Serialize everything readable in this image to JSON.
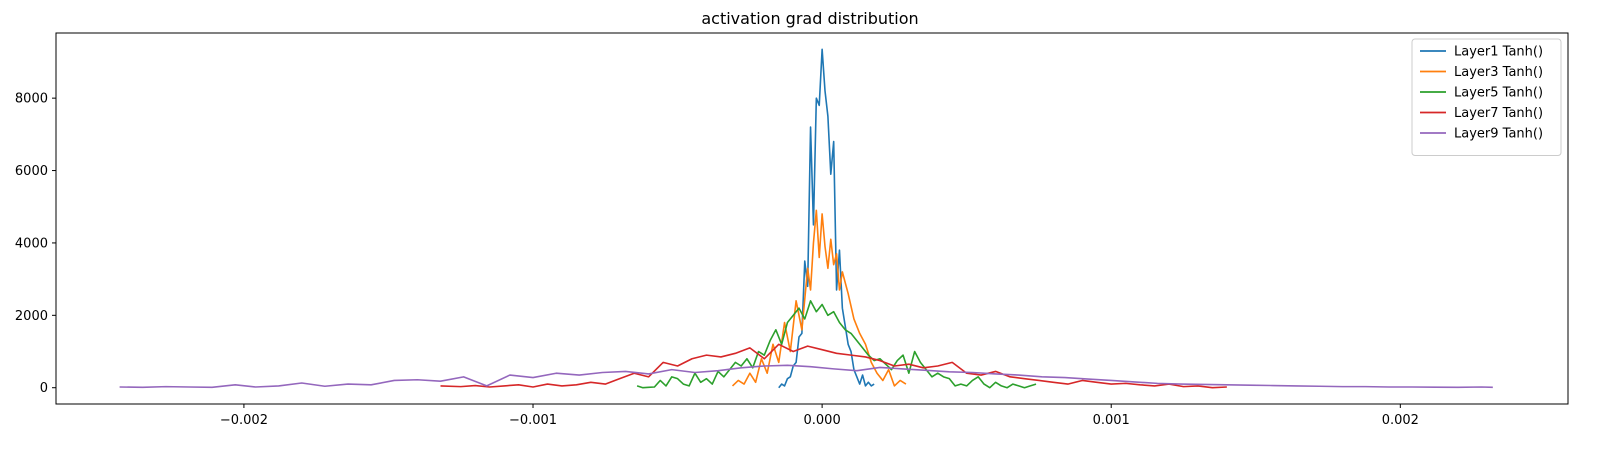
{
  "chart_data": {
    "type": "line",
    "title": "activation grad distribution",
    "xlabel": "",
    "ylabel": "",
    "xlim": [
      -0.00265,
      0.00258
    ],
    "ylim": [
      -450,
      9800
    ],
    "xticks": [
      -0.002,
      -0.001,
      0.0,
      0.001,
      0.002
    ],
    "xtick_labels": [
      "−0.002",
      "−0.001",
      "0.000",
      "0.001",
      "0.002"
    ],
    "yticks": [
      0,
      2000,
      4000,
      6000,
      8000
    ],
    "ytick_labels": [
      "0",
      "2000",
      "4000",
      "6000",
      "8000"
    ],
    "grid": false,
    "legend_position": "top-right",
    "series": [
      {
        "name": "Layer1 Tanh()",
        "color": "#1f77b4",
        "x": [
          -0.00015,
          -0.00014,
          -0.00013,
          -0.00012,
          -0.00011,
          -0.0001,
          -9e-05,
          -8e-05,
          -7e-05,
          -6e-05,
          -5e-05,
          -4e-05,
          -3e-05,
          -2e-05,
          -1e-05,
          0.0,
          1e-05,
          2e-05,
          3e-05,
          4e-05,
          5e-05,
          6e-05,
          7e-05,
          8e-05,
          9e-05,
          0.0001,
          0.00011,
          0.00012,
          0.00013,
          0.00014,
          0.00015,
          0.00016,
          0.00017,
          0.00018
        ],
        "y": [
          0,
          100,
          50,
          250,
          300,
          600,
          700,
          1400,
          1500,
          3500,
          2800,
          7200,
          4500,
          8000,
          7800,
          9350,
          8200,
          7500,
          5900,
          6800,
          2700,
          3800,
          2200,
          1700,
          1200,
          1000,
          500,
          300,
          100,
          350,
          50,
          150,
          50,
          100
        ]
      },
      {
        "name": "Layer3 Tanh()",
        "color": "#ff7f0e",
        "x": [
          -0.00031,
          -0.00029,
          -0.00027,
          -0.00025,
          -0.00023,
          -0.00021,
          -0.00019,
          -0.00017,
          -0.00015,
          -0.00013,
          -0.00011,
          -9e-05,
          -7e-05,
          -5e-05,
          -4e-05,
          -3e-05,
          -2e-05,
          -1e-05,
          0.0,
          1e-05,
          2e-05,
          3e-05,
          4e-05,
          5e-05,
          6e-05,
          7e-05,
          9e-05,
          0.00011,
          0.00013,
          0.00015,
          0.00017,
          0.00019,
          0.00021,
          0.00023,
          0.00025,
          0.00027,
          0.00029
        ],
        "y": [
          50,
          200,
          100,
          400,
          150,
          800,
          400,
          1200,
          700,
          1800,
          1000,
          2400,
          1600,
          3300,
          2700,
          4000,
          4900,
          3600,
          4800,
          3900,
          3300,
          4100,
          3400,
          3700,
          2700,
          3200,
          2600,
          1900,
          1500,
          1200,
          700,
          400,
          200,
          500,
          50,
          200,
          100
        ]
      },
      {
        "name": "Layer5 Tanh()",
        "color": "#2ca02c",
        "x": [
          -0.00064,
          -0.00062,
          -0.0006,
          -0.00058,
          -0.00056,
          -0.00054,
          -0.00052,
          -0.0005,
          -0.00048,
          -0.00046,
          -0.00044,
          -0.00042,
          -0.0004,
          -0.00038,
          -0.00036,
          -0.00034,
          -0.00032,
          -0.0003,
          -0.00028,
          -0.00026,
          -0.00024,
          -0.00022,
          -0.0002,
          -0.00018,
          -0.00016,
          -0.00014,
          -0.00012,
          -0.0001,
          -8e-05,
          -6e-05,
          -4e-05,
          -2e-05,
          0.0,
          2e-05,
          4e-05,
          6e-05,
          8e-05,
          0.0001,
          0.00012,
          0.00014,
          0.00016,
          0.00018,
          0.0002,
          0.00022,
          0.00024,
          0.00026,
          0.00028,
          0.0003,
          0.00032,
          0.00034,
          0.00036,
          0.00038,
          0.0004,
          0.00042,
          0.00044,
          0.00046,
          0.00048,
          0.0005,
          0.00052,
          0.00054,
          0.00056,
          0.00058,
          0.0006,
          0.00062,
          0.00064,
          0.00066,
          0.00068,
          0.0007,
          0.00072,
          0.00074
        ],
        "y": [
          50,
          0,
          10,
          20,
          200,
          50,
          300,
          250,
          100,
          50,
          400,
          150,
          250,
          100,
          450,
          300,
          500,
          700,
          600,
          800,
          550,
          1000,
          900,
          1300,
          1600,
          1200,
          1800,
          2000,
          2200,
          1900,
          2400,
          2100,
          2300,
          2000,
          2100,
          1800,
          1600,
          1500,
          1300,
          1100,
          900,
          750,
          800,
          650,
          500,
          750,
          900,
          400,
          1000,
          700,
          500,
          300,
          400,
          300,
          250,
          50,
          100,
          50,
          200,
          300,
          100,
          0,
          150,
          50,
          0,
          100,
          50,
          0,
          50,
          100
        ]
      },
      {
        "name": "Layer7 Tanh()",
        "color": "#d62728",
        "x": [
          -0.00132,
          -0.00125,
          -0.0012,
          -0.00115,
          -0.0011,
          -0.00105,
          -0.001,
          -0.00095,
          -0.0009,
          -0.00085,
          -0.0008,
          -0.00075,
          -0.0007,
          -0.00065,
          -0.0006,
          -0.00055,
          -0.0005,
          -0.00045,
          -0.0004,
          -0.00035,
          -0.0003,
          -0.00025,
          -0.0002,
          -0.00015,
          -0.0001,
          -5e-05,
          0.0,
          5e-05,
          0.0001,
          0.00015,
          0.0002,
          0.00025,
          0.0003,
          0.00035,
          0.0004,
          0.00045,
          0.0005,
          0.00055,
          0.0006,
          0.00065,
          0.0007,
          0.00075,
          0.0008,
          0.00085,
          0.0009,
          0.00095,
          0.001,
          0.00105,
          0.0011,
          0.00115,
          0.0012,
          0.00125,
          0.0013,
          0.00135,
          0.0014
        ],
        "y": [
          50,
          30,
          60,
          20,
          50,
          80,
          20,
          100,
          50,
          80,
          150,
          100,
          250,
          400,
          300,
          700,
          600,
          800,
          900,
          850,
          950,
          1100,
          800,
          1200,
          1000,
          1150,
          1050,
          950,
          900,
          850,
          750,
          600,
          650,
          550,
          600,
          700,
          400,
          350,
          450,
          300,
          250,
          200,
          150,
          100,
          200,
          150,
          100,
          120,
          80,
          50,
          100,
          30,
          50,
          0,
          20
        ]
      },
      {
        "name": "Layer9 Tanh()",
        "color": "#9467bd",
        "x": [
          -0.00243,
          -0.00235,
          -0.00227,
          -0.00219,
          -0.00211,
          -0.00203,
          -0.00196,
          -0.00188,
          -0.0018,
          -0.00172,
          -0.00164,
          -0.00156,
          -0.00148,
          -0.0014,
          -0.00132,
          -0.00124,
          -0.00116,
          -0.00108,
          -0.001,
          -0.00092,
          -0.00084,
          -0.00076,
          -0.00068,
          -0.0006,
          -0.00052,
          -0.00044,
          -0.00036,
          -0.00028,
          -0.0002,
          -0.00012,
          -4e-05,
          4e-05,
          0.00012,
          0.0002,
          0.00028,
          0.00036,
          0.00044,
          0.00052,
          0.0006,
          0.00068,
          0.00076,
          0.00084,
          0.00092,
          0.001,
          0.00108,
          0.00116,
          0.00124,
          0.00132,
          0.0014,
          0.00148,
          0.00156,
          0.00164,
          0.00172,
          0.0018,
          0.00188,
          0.00196,
          0.00204,
          0.00212,
          0.0022,
          0.00228,
          0.00232
        ],
        "y": [
          20,
          10,
          30,
          20,
          10,
          80,
          20,
          50,
          130,
          40,
          100,
          80,
          200,
          220,
          180,
          300,
          50,
          350,
          280,
          400,
          350,
          420,
          450,
          380,
          500,
          420,
          470,
          550,
          600,
          620,
          580,
          520,
          470,
          560,
          520,
          480,
          440,
          420,
          380,
          350,
          300,
          280,
          240,
          200,
          160,
          120,
          100,
          90,
          80,
          70,
          60,
          50,
          40,
          30,
          30,
          20,
          20,
          15,
          10,
          20,
          10
        ]
      }
    ]
  }
}
